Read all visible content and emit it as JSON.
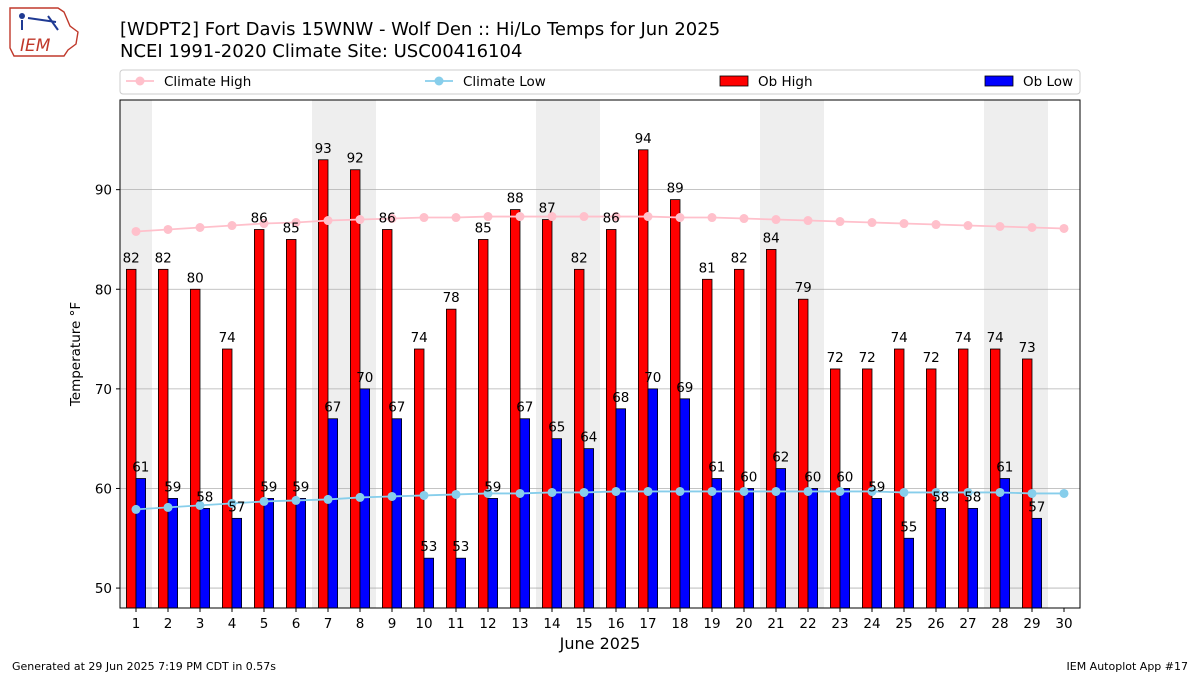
{
  "header": {
    "logo_text": "IEM",
    "title_line1": "[WDPT2] Fort Davis 15WNW - Wolf Den :: Hi/Lo Temps for Jun 2025",
    "title_line2": "NCEI 1991-2020 Climate Site: USC00416104"
  },
  "footer": {
    "generated": "Generated at 29 Jun 2025 7:19 PM CDT in 0.57s",
    "app": "IEM Autoplot App #17"
  },
  "chart_data": {
    "type": "bar",
    "xlabel": "June 2025",
    "ylabel": "Temperature °F",
    "xlim": [
      0.5,
      30.5
    ],
    "ylim": [
      48,
      99
    ],
    "yticks": [
      50,
      60,
      70,
      80,
      90
    ],
    "grid": "y",
    "legend_position": "top",
    "categories": [
      "1",
      "2",
      "3",
      "4",
      "5",
      "6",
      "7",
      "8",
      "9",
      "10",
      "11",
      "12",
      "13",
      "14",
      "15",
      "16",
      "17",
      "18",
      "19",
      "20",
      "21",
      "22",
      "23",
      "24",
      "25",
      "26",
      "27",
      "28",
      "29",
      "30"
    ],
    "weekend_shaded_days": [
      1,
      7,
      8,
      14,
      15,
      21,
      22,
      28,
      29
    ],
    "shade_color": "#eeeeee",
    "series": [
      {
        "name": "Climate High",
        "kind": "line",
        "color": "#ffc0cb",
        "values": [
          85.8,
          86.0,
          86.2,
          86.4,
          86.6,
          86.7,
          86.9,
          87.0,
          87.1,
          87.2,
          87.2,
          87.3,
          87.3,
          87.3,
          87.3,
          87.3,
          87.3,
          87.2,
          87.2,
          87.1,
          87.0,
          86.9,
          86.8,
          86.7,
          86.6,
          86.5,
          86.4,
          86.3,
          86.2,
          86.1
        ]
      },
      {
        "name": "Climate Low",
        "kind": "line",
        "color": "#87ceeb",
        "values": [
          57.9,
          58.1,
          58.3,
          58.5,
          58.7,
          58.8,
          58.9,
          59.1,
          59.2,
          59.3,
          59.4,
          59.5,
          59.5,
          59.6,
          59.6,
          59.7,
          59.7,
          59.7,
          59.7,
          59.7,
          59.7,
          59.7,
          59.7,
          59.7,
          59.6,
          59.6,
          59.6,
          59.6,
          59.5,
          59.5
        ]
      },
      {
        "name": "Ob High",
        "kind": "bar",
        "color": "#ff0000",
        "values": [
          82,
          82,
          80,
          74,
          86,
          85,
          93,
          92,
          86,
          74,
          78,
          85,
          88,
          87,
          82,
          86,
          94,
          89,
          81,
          82,
          84,
          79,
          72,
          72,
          74,
          72,
          74,
          74,
          73,
          null
        ]
      },
      {
        "name": "Ob Low",
        "kind": "bar",
        "color": "#0000ff",
        "values": [
          61,
          59,
          58,
          57,
          59,
          59,
          67,
          70,
          67,
          53,
          53,
          59,
          67,
          65,
          64,
          68,
          70,
          69,
          61,
          60,
          62,
          60,
          60,
          59,
          55,
          58,
          58,
          61,
          57,
          null
        ]
      }
    ]
  }
}
